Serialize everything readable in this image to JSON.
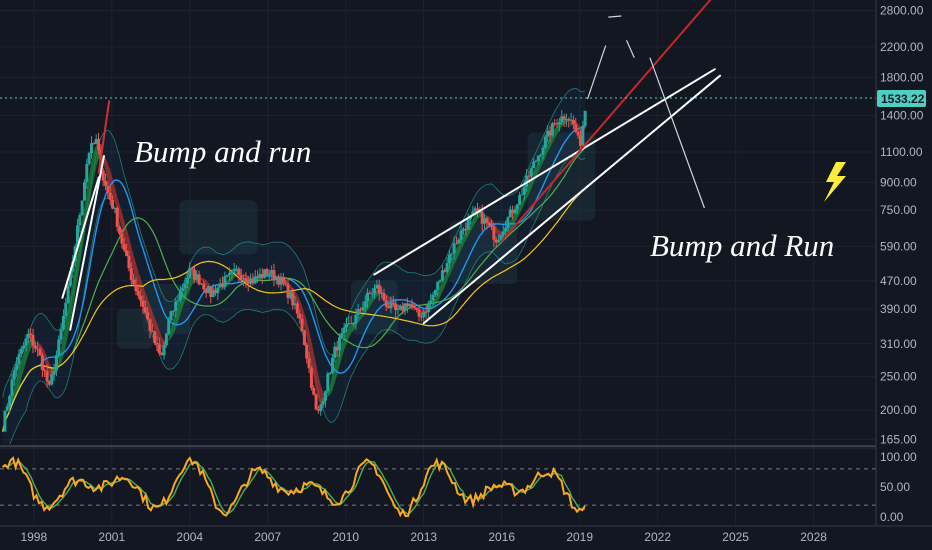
{
  "chart_data": [
    {
      "type": "candlestick",
      "scale": "log",
      "y_ticks": [
        "2800.00",
        "2200.00",
        "1800.00",
        "1400.00",
        "1100.00",
        "900.00",
        "750.00",
        "590.00",
        "470.00",
        "390.00",
        "310.00",
        "250.00",
        "200.00",
        "165.00"
      ],
      "y_tick_values": [
        2800,
        2200,
        1800,
        1400,
        1100,
        900,
        750,
        590,
        470,
        390,
        310,
        250,
        200,
        165
      ],
      "x_ticks": [
        "1998",
        "2001",
        "2004",
        "2007",
        "2010",
        "2013",
        "2016",
        "2019",
        "2022",
        "2025",
        "2028"
      ],
      "x_tick_values": [
        1998,
        2001,
        2004,
        2007,
        2010,
        2013,
        2016,
        2019,
        2022,
        2025,
        2028
      ],
      "xlim": [
        1996.7,
        2030.4
      ],
      "ylim": [
        160,
        3000
      ],
      "last_price": "1533.22",
      "last_price_value": 1533.22,
      "price_path": [
        [
          1996.8,
          180
        ],
        [
          1997.3,
          270
        ],
        [
          1997.8,
          330
        ],
        [
          1998.2,
          290
        ],
        [
          1998.6,
          230
        ],
        [
          1999.0,
          320
        ],
        [
          1999.4,
          480
        ],
        [
          1999.8,
          760
        ],
        [
          2000.1,
          1100
        ],
        [
          2000.4,
          1180
        ],
        [
          2000.7,
          900
        ],
        [
          2001.1,
          750
        ],
        [
          2001.5,
          560
        ],
        [
          2001.8,
          470
        ],
        [
          2002.2,
          400
        ],
        [
          2002.6,
          320
        ],
        [
          2002.9,
          280
        ],
        [
          2003.2,
          360
        ],
        [
          2003.6,
          430
        ],
        [
          2004.0,
          500
        ],
        [
          2004.4,
          470
        ],
        [
          2004.8,
          430
        ],
        [
          2005.2,
          460
        ],
        [
          2005.8,
          500
        ],
        [
          2006.4,
          470
        ],
        [
          2007.0,
          500
        ],
        [
          2007.5,
          470
        ],
        [
          2007.9,
          420
        ],
        [
          2008.3,
          350
        ],
        [
          2008.6,
          260
        ],
        [
          2008.9,
          190
        ],
        [
          2009.2,
          230
        ],
        [
          2009.6,
          300
        ],
        [
          2010.0,
          340
        ],
        [
          2010.4,
          370
        ],
        [
          2010.8,
          420
        ],
        [
          2011.2,
          450
        ],
        [
          2011.6,
          400
        ],
        [
          2012.0,
          380
        ],
        [
          2012.4,
          410
        ],
        [
          2012.8,
          370
        ],
        [
          2013.2,
          400
        ],
        [
          2013.6,
          470
        ],
        [
          2014.0,
          560
        ],
        [
          2014.5,
          660
        ],
        [
          2015.0,
          740
        ],
        [
          2015.4,
          690
        ],
        [
          2015.8,
          620
        ],
        [
          2016.2,
          700
        ],
        [
          2016.7,
          820
        ],
        [
          2017.2,
          1000
        ],
        [
          2017.7,
          1200
        ],
        [
          2018.1,
          1350
        ],
        [
          2018.5,
          1410
        ],
        [
          2018.8,
          1300
        ],
        [
          2019.0,
          1140
        ],
        [
          2019.25,
          1533
        ]
      ],
      "annotations": [
        "Bump and run",
        "Bump and Run"
      ]
    },
    {
      "type": "line",
      "indicator": "oscillator",
      "y_ticks": [
        "100.00",
        "50.00",
        "0.00"
      ],
      "y_tick_values": [
        100,
        50,
        0
      ],
      "ylim": [
        -8,
        108
      ],
      "bands": [
        80,
        20
      ]
    }
  ]
}
